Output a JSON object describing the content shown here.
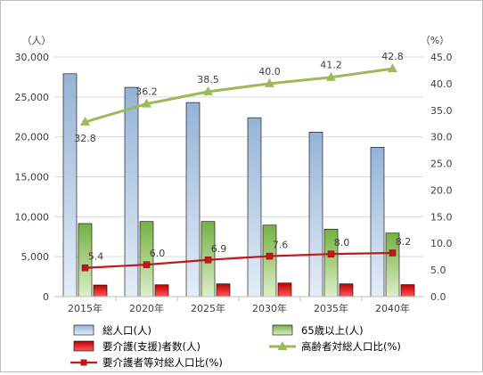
{
  "chart_data": {
    "type": "bar",
    "categories": [
      "2015年",
      "2020年",
      "2025年",
      "2030年",
      "2035年",
      "2040年"
    ],
    "left_axis": {
      "unit_label": "（人）",
      "ylim": [
        0,
        30000
      ],
      "ticks": [
        "0",
        "5,000",
        "10,000",
        "15,000",
        "20,000",
        "25,000",
        "30,000"
      ],
      "tick_values": [
        0,
        5000,
        10000,
        15000,
        20000,
        25000,
        30000
      ]
    },
    "right_axis": {
      "unit_label": "（%）",
      "ylim": [
        0,
        45
      ],
      "ticks": [
        "0.0",
        "5.0",
        "10.0",
        "15.0",
        "20.0",
        "25.0",
        "30.0",
        "35.0",
        "40.0",
        "45.0"
      ],
      "tick_values": [
        0,
        5,
        10,
        15,
        20,
        25,
        30,
        35,
        40,
        45
      ]
    },
    "series": [
      {
        "name": "総人口(人)",
        "kind": "bar",
        "axis": "left",
        "values": [
          27900,
          26200,
          24300,
          22400,
          20600,
          18700
        ]
      },
      {
        "name": "65歳以上(人)",
        "kind": "bar",
        "axis": "left",
        "values": [
          9150,
          9400,
          9400,
          8950,
          8450,
          7950
        ]
      },
      {
        "name": "要介護(支援)者数(人)",
        "kind": "bar",
        "axis": "left",
        "values": [
          1450,
          1480,
          1600,
          1700,
          1600,
          1500
        ]
      },
      {
        "name": "高齢者対総人口比(%)",
        "kind": "line",
        "axis": "right",
        "values": [
          32.8,
          36.2,
          38.5,
          40.0,
          41.2,
          42.8
        ],
        "labels": [
          "32.8",
          "36.2",
          "38.5",
          "40.0",
          "41.2",
          "42.8"
        ]
      },
      {
        "name": "要介護者等対総人口比(%)",
        "kind": "line",
        "axis": "right",
        "values": [
          5.4,
          6.0,
          6.9,
          7.6,
          8.0,
          8.2
        ],
        "labels": [
          "5.4",
          "6.0",
          "6.9",
          "7.6",
          "8.0",
          "8.2"
        ]
      }
    ],
    "colors": {
      "total": "#b8cce4",
      "total_edge": "#000000",
      "elderly": "#9bcb6b",
      "elderly_edge": "#000000",
      "care": "#e02020",
      "care_edge": "#000000",
      "elderly_ratio": "#9bbb59",
      "care_ratio": "#c0191d",
      "grid": "#d9d9d9",
      "axis_text": "#404040"
    },
    "grid": true,
    "legend_position": "bottom"
  }
}
